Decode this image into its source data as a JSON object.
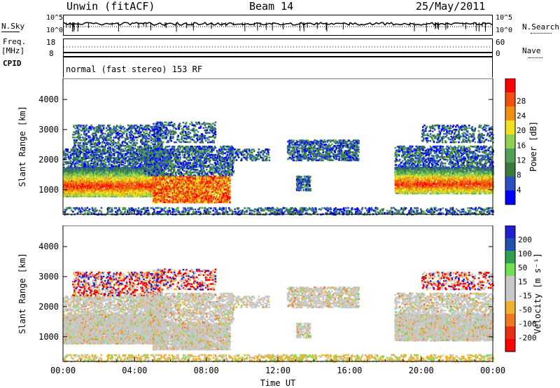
{
  "header": {
    "station": "Unwin (fitACF)",
    "beam": "Beam 14",
    "date": "25/May/2011"
  },
  "status_panels": {
    "nsky_label": "N.Sky",
    "nsky_ticks": [
      "10^5",
      "10^0"
    ],
    "nsearch_label": "N.Search",
    "nsearch_ticks": [
      "10^5",
      "10^0"
    ],
    "freq_label": "Freq.",
    "freq_unit": "[MHz]",
    "freq_ticks": [
      "18",
      "8"
    ],
    "nave_label": "Nave",
    "nave_ticks": [
      "60",
      "0"
    ],
    "cpid_label": "CPID",
    "cpid_text": "normal (fast stereo) 153 RF"
  },
  "colors": {
    "power": [
      "#0000ff",
      "#2a50c0",
      "#3c7a3c",
      "#4fa05a",
      "#8fd050",
      "#f0e020",
      "#f09010",
      "#f05010",
      "#ff0000"
    ],
    "velocity": [
      "#ff0000",
      "#e83010",
      "#f07820",
      "#f0b030",
      "#c8c8c8",
      "#c8c8c8",
      "#70e050",
      "#30a050",
      "#2050b0",
      "#2020d0"
    ]
  },
  "chart_data": [
    {
      "type": "heatmap",
      "panel": "power",
      "ylabel": "Slant Range [km]",
      "xlabel": "",
      "y_ticks": [
        1000,
        2000,
        3000,
        4000
      ],
      "ylim": [
        180,
        4700
      ],
      "x_ticks": [
        "00:00",
        "04:00",
        "08:00",
        "12:00",
        "16:00",
        "20:00",
        "00:00"
      ],
      "colorbar_label": "Power [dB]",
      "colorbar_ticks": [
        "4",
        "8",
        "12",
        "16",
        "20",
        "24",
        "28"
      ],
      "colorbar_range": [
        0,
        30
      ]
    },
    {
      "type": "heatmap",
      "panel": "velocity",
      "ylabel": "Slant Range [km]",
      "xlabel": "Time UT",
      "y_ticks": [
        1000,
        2000,
        3000,
        4000
      ],
      "ylim": [
        180,
        4700
      ],
      "x_ticks": [
        "00:00",
        "04:00",
        "08:00",
        "12:00",
        "16:00",
        "20:00",
        "00:00"
      ],
      "colorbar_label": "Velocity [m s⁻¹]",
      "colorbar_ticks": [
        "200",
        "100",
        "50",
        "15",
        "-15",
        "-50",
        "-100",
        "-200"
      ],
      "colorbar_range": [
        -250,
        250
      ]
    }
  ]
}
